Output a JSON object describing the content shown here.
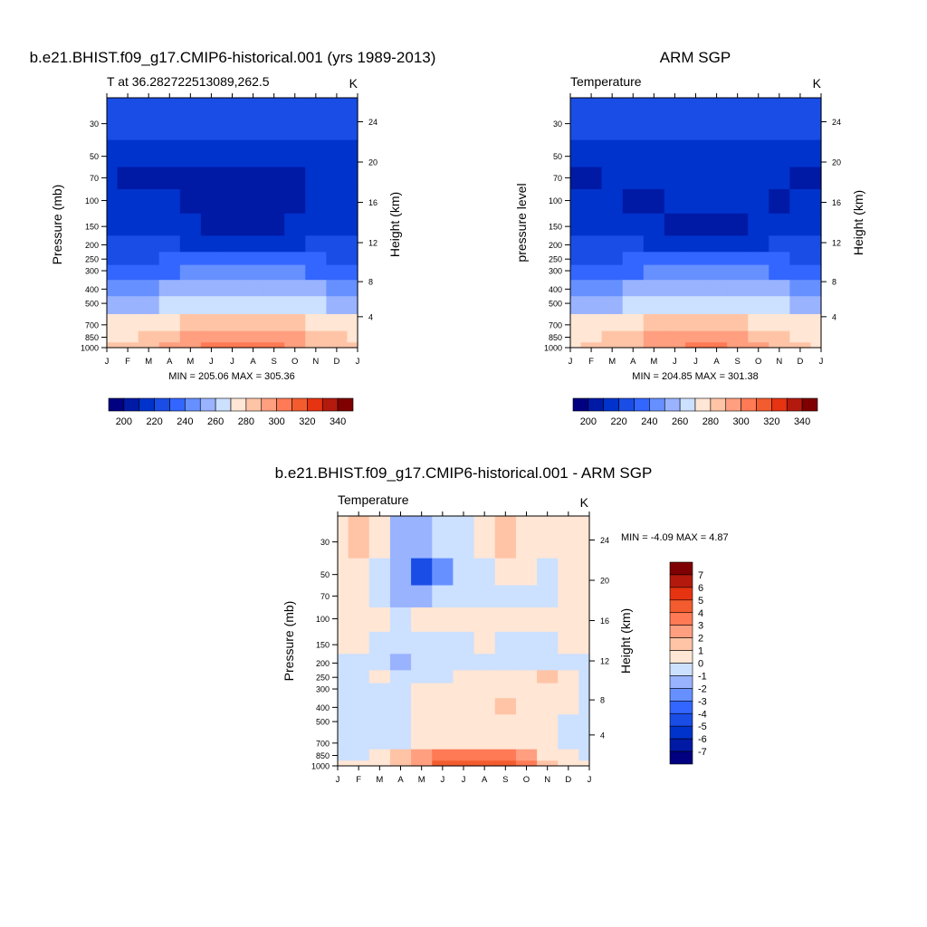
{
  "palette": [
    "#000080",
    "#001aa6",
    "#0033cc",
    "#1a4de6",
    "#3366ff",
    "#6690ff",
    "#99b3ff",
    "#cce0ff",
    "#ffe6d5",
    "#ffc4a6",
    "#ff9f80",
    "#ff7a55",
    "#f25c2e",
    "#e63312",
    "#b31a0d",
    "#7f0000"
  ],
  "months": [
    "J",
    "F",
    "M",
    "A",
    "M",
    "J",
    "J",
    "A",
    "S",
    "O",
    "N",
    "D",
    "J"
  ],
  "pressure_ticks": [
    "30",
    "50",
    "70",
    "100",
    "150",
    "200",
    "250",
    "300",
    "400",
    "500",
    "700",
    "850",
    "1000"
  ],
  "height_ticks": [
    "24",
    "20",
    "16",
    "12",
    "8",
    "4"
  ],
  "panels": [
    {
      "title": "b.e21.BHIST.f09_g17.CMIP6-historical.001 (yrs 1989-2013)",
      "left_label": "T at 36.282722513089,262.5",
      "right_label": "K",
      "ylabel": "Pressure (mb)",
      "ylabel_right": "Height (km)",
      "stats": "MIN = 205.06 MAX = 305.36",
      "colorbar_labels": [
        "200",
        "220",
        "240",
        "260",
        "280",
        "300",
        "320",
        "340"
      ]
    },
    {
      "title": "ARM SGP",
      "left_label": "Temperature",
      "right_label": "K",
      "ylabel": "pressure level",
      "ylabel_right": "Height (km)",
      "stats": "MIN = 204.85 MAX = 301.38",
      "colorbar_labels": [
        "200",
        "220",
        "240",
        "260",
        "280",
        "300",
        "320",
        "340"
      ]
    },
    {
      "title": "b.e21.BHIST.f09_g17.CMIP6-historical.001 - ARM SGP",
      "left_label": "Temperature",
      "right_label": "K",
      "ylabel": "Pressure (mb)",
      "ylabel_right": "Height (km)",
      "stats": "MIN =  -4.09 MAX =   4.87",
      "colorbar_labels": [
        "7",
        "6",
        "5",
        "4",
        "3",
        "2",
        "1",
        "0",
        "-1",
        "-2",
        "-3",
        "-4",
        "-5",
        "-6",
        "-7"
      ]
    }
  ],
  "chart_data": [
    {
      "type": "heatmap",
      "title": "b.e21.BHIST.f09_g17.CMIP6-historical.001 (yrs 1989-2013)",
      "variable": "T at 36.282722513089,262.5",
      "units": "K",
      "xlabel": "",
      "ylabel": "Pressure (mb)",
      "ylabel_right": "Height (km)",
      "x": [
        "J",
        "F",
        "M",
        "A",
        "M",
        "J",
        "J",
        "A",
        "S",
        "O",
        "N",
        "D",
        "J"
      ],
      "y_pressure": [
        30,
        50,
        70,
        100,
        150,
        200,
        250,
        300,
        400,
        500,
        700,
        850,
        1000
      ],
      "y_height_km": [
        24,
        20,
        16,
        12,
        8,
        4
      ],
      "levels": [
        200,
        210,
        220,
        230,
        240,
        250,
        260,
        270,
        280,
        290,
        300,
        310,
        320,
        330,
        340
      ],
      "min": 205.06,
      "max": 305.36,
      "values": [
        [
          223,
          223,
          224,
          225,
          226,
          227,
          227,
          226,
          225,
          224,
          223,
          223,
          223
        ],
        [
          215,
          215,
          214,
          214,
          215,
          215,
          214,
          214,
          214,
          214,
          215,
          215,
          215
        ],
        [
          212,
          209,
          207,
          207,
          208,
          208,
          208,
          208,
          208,
          209,
          211,
          213,
          212
        ],
        [
          214,
          213,
          212,
          210,
          207,
          206,
          206,
          206,
          207,
          208,
          212,
          214,
          214
        ],
        [
          218,
          218,
          217,
          216,
          212,
          208,
          207,
          207,
          208,
          211,
          216,
          218,
          218
        ],
        [
          220,
          220,
          220,
          220,
          219,
          218,
          217,
          217,
          218,
          219,
          220,
          220,
          220
        ],
        [
          228,
          228,
          229,
          230,
          232,
          234,
          235,
          235,
          234,
          232,
          230,
          228,
          228
        ],
        [
          234,
          234,
          235,
          237,
          240,
          243,
          244,
          244,
          243,
          240,
          237,
          235,
          234
        ],
        [
          246,
          246,
          248,
          251,
          254,
          256,
          257,
          257,
          256,
          253,
          250,
          247,
          246
        ],
        [
          255,
          255,
          257,
          261,
          264,
          267,
          268,
          268,
          267,
          264,
          260,
          257,
          255
        ],
        [
          270,
          270,
          273,
          277,
          281,
          284,
          285,
          285,
          284,
          280,
          276,
          272,
          270
        ],
        [
          278,
          279,
          282,
          287,
          292,
          296,
          298,
          298,
          296,
          291,
          285,
          280,
          278
        ],
        [
          281,
          282,
          285,
          291,
          297,
          302,
          305,
          304,
          301,
          295,
          288,
          283,
          281
        ]
      ]
    },
    {
      "type": "heatmap",
      "title": "ARM SGP",
      "variable": "Temperature",
      "units": "K",
      "xlabel": "",
      "ylabel": "pressure level",
      "ylabel_right": "Height (km)",
      "x": [
        "J",
        "F",
        "M",
        "A",
        "M",
        "J",
        "J",
        "A",
        "S",
        "O",
        "N",
        "D",
        "J"
      ],
      "y_pressure": [
        30,
        50,
        70,
        100,
        150,
        200,
        250,
        300,
        400,
        500,
        700,
        850,
        1000
      ],
      "y_height_km": [
        24,
        20,
        16,
        12,
        8,
        4
      ],
      "levels": [
        200,
        210,
        220,
        230,
        240,
        250,
        260,
        270,
        280,
        290,
        300,
        310,
        320,
        330,
        340
      ],
      "min": 204.85,
      "max": 301.38,
      "values": [
        [
          222,
          222,
          223,
          224,
          226,
          227,
          227,
          226,
          225,
          224,
          222,
          222,
          222
        ],
        [
          214,
          213,
          213,
          214,
          215,
          215,
          215,
          215,
          214,
          214,
          214,
          214,
          214
        ],
        [
          208,
          208,
          212,
          213,
          214,
          214,
          214,
          214,
          214,
          213,
          212,
          208,
          208
        ],
        [
          212,
          212,
          210,
          207,
          209,
          212,
          213,
          213,
          212,
          210,
          209,
          212,
          212
        ],
        [
          218,
          218,
          218,
          216,
          212,
          207,
          206,
          206,
          208,
          212,
          216,
          218,
          218
        ],
        [
          220,
          220,
          220,
          220,
          219,
          218,
          217,
          217,
          218,
          219,
          220,
          220,
          220
        ],
        [
          228,
          228,
          229,
          230,
          232,
          234,
          235,
          235,
          234,
          232,
          230,
          228,
          228
        ],
        [
          234,
          234,
          235,
          237,
          240,
          243,
          244,
          244,
          243,
          240,
          237,
          235,
          234
        ],
        [
          246,
          246,
          248,
          251,
          254,
          256,
          257,
          257,
          256,
          253,
          250,
          247,
          246
        ],
        [
          255,
          255,
          257,
          261,
          264,
          267,
          268,
          268,
          267,
          264,
          260,
          257,
          255
        ],
        [
          270,
          270,
          272,
          276,
          280,
          283,
          284,
          284,
          283,
          279,
          275,
          272,
          270
        ],
        [
          276,
          277,
          280,
          285,
          290,
          293,
          295,
          295,
          293,
          288,
          282,
          278,
          276
        ],
        [
          279,
          280,
          283,
          288,
          294,
          298,
          301,
          301,
          298,
          292,
          285,
          281,
          279
        ]
      ]
    },
    {
      "type": "heatmap",
      "title": "b.e21.BHIST.f09_g17.CMIP6-historical.001 - ARM SGP",
      "variable": "Temperature",
      "units": "K",
      "xlabel": "",
      "ylabel": "Pressure (mb)",
      "ylabel_right": "Height (km)",
      "x": [
        "J",
        "F",
        "M",
        "A",
        "M",
        "J",
        "J",
        "A",
        "S",
        "O",
        "N",
        "D",
        "J"
      ],
      "y_pressure": [
        30,
        50,
        70,
        100,
        150,
        200,
        250,
        300,
        400,
        500,
        700,
        850,
        1000
      ],
      "y_height_km": [
        24,
        20,
        16,
        12,
        8,
        4
      ],
      "levels": [
        -7,
        -6,
        -5,
        -4,
        -3,
        -2,
        -1,
        0,
        1,
        2,
        3,
        4,
        5,
        6,
        7
      ],
      "min": -4.09,
      "max": 4.87,
      "values": [
        [
          0.8,
          1.3,
          0.3,
          -1.2,
          -1.8,
          -0.8,
          -0.5,
          0.2,
          1.2,
          0.6,
          0.3,
          0.4,
          0.8
        ],
        [
          0.3,
          0.2,
          -0.2,
          -1.6,
          -4.1,
          -2.5,
          -1.0,
          -0.4,
          0.2,
          0.3,
          -0.3,
          0.2,
          0.3
        ],
        [
          0.7,
          0.4,
          -0.4,
          -1.2,
          -1.5,
          -1.0,
          -0.6,
          -0.4,
          -0.2,
          -0.2,
          -0.2,
          0.8,
          0.7
        ],
        [
          0.9,
          0.6,
          0.2,
          -0.4,
          0.3,
          0.5,
          0.4,
          0.9,
          0.3,
          0.3,
          0.4,
          0.8,
          0.9
        ],
        [
          0.1,
          0.1,
          -0.2,
          -0.6,
          -0.8,
          -0.4,
          -0.1,
          0.1,
          -0.6,
          -0.3,
          -0.2,
          0.1,
          0.1
        ],
        [
          -1.0,
          -0.4,
          -0.2,
          -1.3,
          -0.8,
          -0.6,
          -0.2,
          -0.2,
          -0.8,
          -0.3,
          -0.2,
          -0.1,
          -1.0
        ],
        [
          -0.3,
          -0.2,
          0.5,
          -0.4,
          -0.3,
          -0.2,
          0.3,
          0.6,
          0.5,
          0.8,
          1.1,
          0.2,
          -0.3
        ],
        [
          -0.3,
          -0.2,
          -0.2,
          -0.2,
          0.3,
          0.6,
          0.7,
          0.7,
          0.8,
          0.7,
          0.5,
          0.2,
          -0.3
        ],
        [
          -0.3,
          -0.3,
          -0.3,
          -0.2,
          0.4,
          0.5,
          0.6,
          0.6,
          1.3,
          0.5,
          0.4,
          0.2,
          -0.3
        ],
        [
          -0.4,
          -0.3,
          -0.3,
          -0.2,
          0.3,
          0.4,
          0.5,
          0.5,
          0.5,
          0.4,
          0.3,
          -0.2,
          -0.4
        ],
        [
          -0.3,
          -0.2,
          -0.3,
          -0.2,
          0.4,
          0.6,
          0.7,
          0.6,
          0.7,
          0.6,
          0.4,
          -0.5,
          -0.3
        ],
        [
          -0.4,
          -0.3,
          0.4,
          1.4,
          2.4,
          3.2,
          3.4,
          3.0,
          3.2,
          2.0,
          0.9,
          0.2,
          -0.4
        ],
        [
          0.2,
          0.3,
          0.6,
          1.4,
          2.6,
          4.0,
          4.8,
          4.2,
          4.6,
          3.0,
          1.4,
          0.5,
          0.2
        ]
      ]
    }
  ]
}
